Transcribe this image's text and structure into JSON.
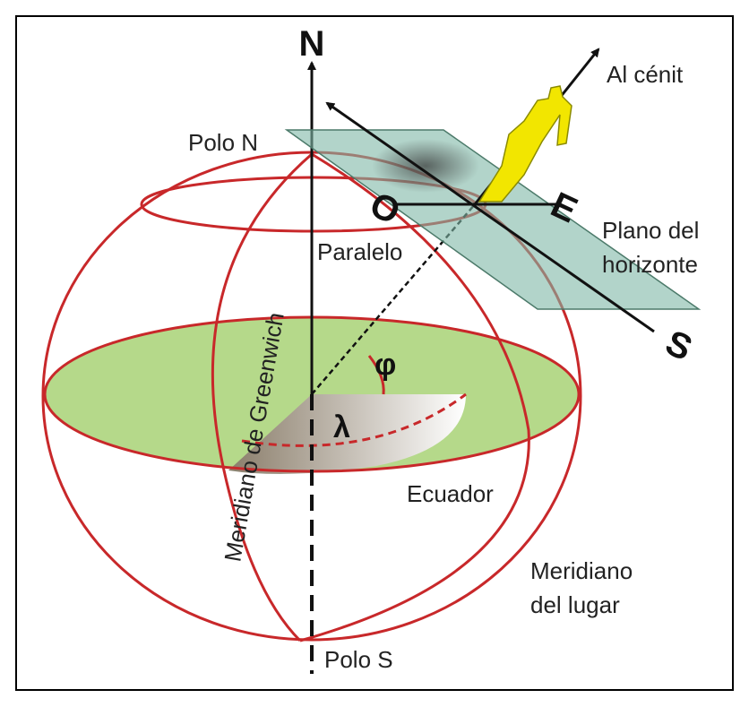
{
  "labels": {
    "north": "N",
    "zenith": "Al cénit",
    "north_pole": "Polo N",
    "west": "O",
    "east": "E",
    "horizon_plane": [
      "Plano del",
      "horizonte"
    ],
    "parallel": "Paralelo",
    "greenwich": "Meridiano de Greenwich",
    "latitude": "φ",
    "longitude": "λ",
    "south": "S",
    "equator": "Ecuador",
    "local_meridian": [
      "Meridiano",
      "del lugar"
    ],
    "south_pole": "Polo S"
  }
}
